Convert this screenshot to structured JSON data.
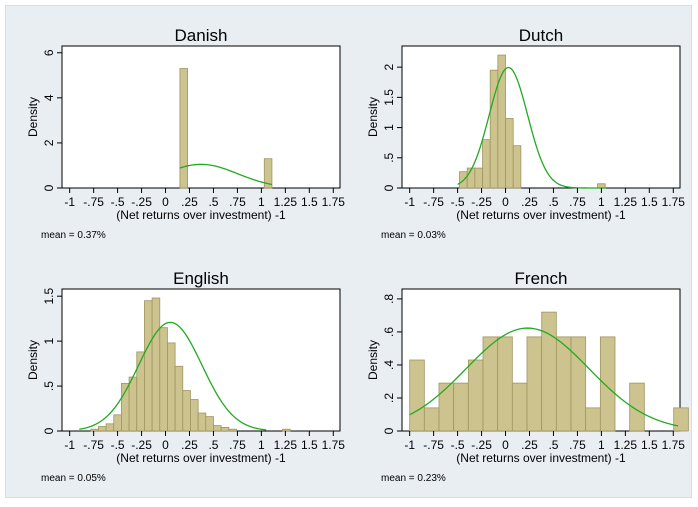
{
  "page": {
    "background": "#e9eef3",
    "plot_background": "#ffffff",
    "bar_fill": "#cdc38e",
    "bar_stroke": "#9e9560",
    "curve_color": "#22aa22"
  },
  "chart_data": [
    {
      "type": "bar",
      "title": "Danish",
      "xlabel": "(Net returns over investment) -1",
      "ylabel": "Density",
      "note": "mean = 0.37%",
      "xlim": [
        -1.08,
        1.82
      ],
      "ylim": [
        0,
        6.3
      ],
      "xticks": [
        -1,
        -0.75,
        -0.5,
        -0.25,
        0,
        0.25,
        0.5,
        0.75,
        1,
        1.25,
        1.5,
        1.75
      ],
      "xtick_labels": [
        "-1",
        "-.75",
        "-.5",
        "-.25",
        "0",
        ".25",
        ".5",
        ".75",
        "1",
        "1.25",
        "1.5",
        "1.75"
      ],
      "yticks": [
        0,
        2,
        4,
        6
      ],
      "ytick_labels": [
        "0",
        "2",
        "4",
        "6"
      ],
      "bar_width": 0.08,
      "bar_starts": [
        0.15,
        0.23,
        0.31,
        0.39,
        0.47,
        0.55,
        0.63,
        0.71,
        0.79,
        0.87,
        0.95,
        1.03
      ],
      "values": [
        5.3,
        0,
        0,
        0,
        0,
        0,
        0,
        0,
        0,
        0,
        0,
        1.3
      ],
      "curve": {
        "mean": 0.37,
        "sd": 0.38,
        "x_range": [
          0.15,
          1.11
        ],
        "label": ""
      }
    },
    {
      "type": "bar",
      "title": "Dutch",
      "xlabel": "(Net returns over investment) -1",
      "ylabel": "Density",
      "note": "mean = 0.03%",
      "xlim": [
        -1.08,
        1.82
      ],
      "ylim": [
        0,
        2.35
      ],
      "xticks": [
        -1,
        -0.75,
        -0.5,
        -0.25,
        0,
        0.25,
        0.5,
        0.75,
        1,
        1.25,
        1.5,
        1.75
      ],
      "xtick_labels": [
        "-1",
        "-.75",
        "-.5",
        "-.25",
        "0",
        ".25",
        ".5",
        ".75",
        "1",
        "1.25",
        "1.5",
        "1.75"
      ],
      "yticks": [
        0,
        0.5,
        1,
        1.5,
        2
      ],
      "ytick_labels": [
        "0",
        ".5",
        "1",
        "1.5",
        "2"
      ],
      "bar_width": 0.08,
      "bar_starts": [
        -0.48,
        -0.4,
        -0.32,
        -0.24,
        -0.16,
        -0.08,
        0,
        0.08,
        0.16,
        0.24,
        0.32,
        0.4,
        0.48,
        0.56,
        0.64,
        0.72,
        0.8,
        0.88,
        0.96
      ],
      "values": [
        0.27,
        0.33,
        0.33,
        0.8,
        1.95,
        2.2,
        1.15,
        0.7,
        0,
        0,
        0,
        0,
        0,
        0,
        0,
        0,
        0,
        0,
        0.07
      ],
      "curve": {
        "mean": 0.03,
        "sd": 0.2,
        "x_range": [
          -0.5,
          1.05
        ],
        "label": ""
      }
    },
    {
      "type": "bar",
      "title": "English",
      "xlabel": "(Net returns over investment) -1",
      "ylabel": "Density",
      "note": "mean = 0.05%",
      "xlim": [
        -1.08,
        1.82
      ],
      "ylim": [
        0,
        1.58
      ],
      "xticks": [
        -1,
        -0.75,
        -0.5,
        -0.25,
        0,
        0.25,
        0.5,
        0.75,
        1,
        1.25,
        1.5,
        1.75
      ],
      "xtick_labels": [
        "-1",
        "-.75",
        "-.5",
        "-.25",
        "0",
        ".25",
        ".5",
        ".75",
        "1",
        "1.25",
        "1.5",
        "1.75"
      ],
      "yticks": [
        0,
        0.5,
        1,
        1.5
      ],
      "ytick_labels": [
        "0",
        ".5",
        "1",
        "1.5"
      ],
      "bar_width": 0.08,
      "bar_starts": [
        -0.78,
        -0.7,
        -0.62,
        -0.54,
        -0.46,
        -0.38,
        -0.3,
        -0.22,
        -0.14,
        -0.06,
        0.02,
        0.1,
        0.18,
        0.26,
        0.34,
        0.42,
        0.5,
        0.58,
        0.66,
        0.74,
        0.82,
        0.9,
        0.98,
        1.06,
        1.14,
        1.22
      ],
      "values": [
        0.02,
        0.05,
        0.08,
        0.18,
        0.53,
        0.6,
        0.88,
        1.45,
        1.48,
        1.15,
        0.98,
        0.72,
        0.45,
        0.35,
        0.2,
        0.16,
        0.06,
        0.04,
        0.02,
        0,
        0,
        0,
        0,
        0,
        0,
        0.02
      ],
      "curve": {
        "mean": 0.05,
        "sd": 0.33,
        "x_range": [
          -0.9,
          1.05
        ],
        "label": ""
      }
    },
    {
      "type": "bar",
      "title": "French",
      "xlabel": "(Net returns over investment) -1",
      "ylabel": "Density",
      "note": "mean = 0.23%",
      "xlim": [
        -1.08,
        1.82
      ],
      "ylim": [
        0,
        0.86
      ],
      "xticks": [
        -1,
        -0.75,
        -0.5,
        -0.25,
        0,
        0.25,
        0.5,
        0.75,
        1,
        1.25,
        1.5,
        1.75
      ],
      "xtick_labels": [
        "-1",
        "-.75",
        "-.5",
        "-.25",
        "0",
        ".25",
        ".5",
        ".75",
        "1",
        "1.25",
        "1.5",
        "1.75"
      ],
      "yticks": [
        0,
        0.2,
        0.4,
        0.6,
        0.8
      ],
      "ytick_labels": [
        "0",
        ".2",
        ".4",
        ".6",
        ".8"
      ],
      "bar_width": 0.153,
      "bar_starts": [
        -1.0,
        -0.847,
        -0.694,
        -0.541,
        -0.388,
        -0.235,
        -0.082,
        0.071,
        0.224,
        0.377,
        0.53,
        0.683,
        0.836,
        0.989,
        1.142,
        1.295,
        1.448,
        1.601,
        1.754
      ],
      "values": [
        0.43,
        0.14,
        0.29,
        0.29,
        0.43,
        0.57,
        0.57,
        0.29,
        0.57,
        0.72,
        0.57,
        0.57,
        0.14,
        0.57,
        0,
        0.29,
        0,
        0,
        0.14
      ],
      "curve": {
        "mean": 0.23,
        "sd": 0.64,
        "x_range": [
          -1.0,
          1.8
        ],
        "label": ""
      }
    }
  ]
}
